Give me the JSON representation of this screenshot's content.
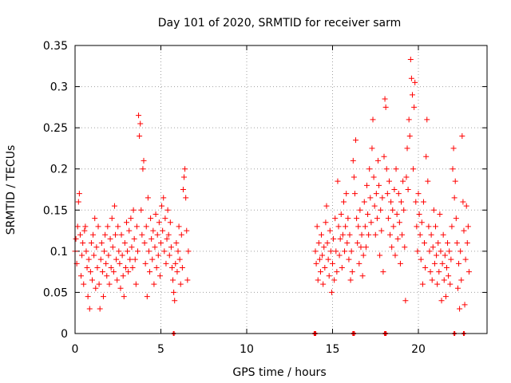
{
  "chart_data": {
    "type": "scatter",
    "title": "Day 101 of 2020, SRMTID for receiver sarm",
    "xlabel": "GPS time / hours",
    "ylabel": "SRMTID / TECUs",
    "xlim": [
      0,
      24
    ],
    "ylim": [
      0,
      0.35
    ],
    "xticks": [
      0,
      5,
      10,
      15,
      20
    ],
    "yticks": [
      0,
      0.05,
      0.1,
      0.15,
      0.2,
      0.25,
      0.3,
      0.35
    ],
    "ytick_labels": [
      "0",
      "0.05",
      "0.1",
      "0.15",
      "0.2",
      "0.25",
      "0.3",
      "0.35"
    ],
    "grid": true,
    "marker": "+",
    "color": "#ff0000",
    "series": [
      {
        "name": "SRMTID",
        "points": [
          [
            0.0,
            0.1
          ],
          [
            0.05,
            0.115
          ],
          [
            0.1,
            0.085
          ],
          [
            0.15,
            0.13
          ],
          [
            0.2,
            0.16
          ],
          [
            0.25,
            0.17
          ],
          [
            0.3,
            0.12
          ],
          [
            0.35,
            0.07
          ],
          [
            0.4,
            0.095
          ],
          [
            0.45,
            0.11
          ],
          [
            0.5,
            0.06
          ],
          [
            0.55,
            0.125
          ],
          [
            0.6,
            0.13
          ],
          [
            0.65,
            0.1
          ],
          [
            0.7,
            0.08
          ],
          [
            0.75,
            0.045
          ],
          [
            0.8,
            0.09
          ],
          [
            0.85,
            0.03
          ],
          [
            0.9,
            0.075
          ],
          [
            0.95,
            0.11
          ],
          [
            1.0,
            0.065
          ],
          [
            1.05,
            0.12
          ],
          [
            1.1,
            0.095
          ],
          [
            1.15,
            0.14
          ],
          [
            1.2,
            0.055
          ],
          [
            1.25,
            0.105
          ],
          [
            1.3,
            0.08
          ],
          [
            1.35,
            0.13
          ],
          [
            1.4,
            0.06
          ],
          [
            1.45,
            0.03
          ],
          [
            1.5,
            0.09
          ],
          [
            1.55,
            0.11
          ],
          [
            1.6,
            0.075
          ],
          [
            1.65,
            0.045
          ],
          [
            1.7,
            0.1
          ],
          [
            1.75,
            0.12
          ],
          [
            1.8,
            0.085
          ],
          [
            1.85,
            0.07
          ],
          [
            1.9,
            0.13
          ],
          [
            1.95,
            0.095
          ],
          [
            2.0,
            0.06
          ],
          [
            2.05,
            0.115
          ],
          [
            2.1,
            0.08
          ],
          [
            2.15,
            0.14
          ],
          [
            2.2,
            0.105
          ],
          [
            2.25,
            0.075
          ],
          [
            2.3,
            0.155
          ],
          [
            2.35,
            0.12
          ],
          [
            2.4,
            0.09
          ],
          [
            2.45,
            0.065
          ],
          [
            2.5,
            0.13
          ],
          [
            2.55,
            0.1
          ],
          [
            2.6,
            0.085
          ],
          [
            2.65,
            0.055
          ],
          [
            2.7,
            0.12
          ],
          [
            2.75,
            0.095
          ],
          [
            2.8,
            0.07
          ],
          [
            2.85,
            0.045
          ],
          [
            2.9,
            0.11
          ],
          [
            2.95,
            0.08
          ],
          [
            3.0,
            0.135
          ],
          [
            3.05,
            0.1
          ],
          [
            3.1,
            0.075
          ],
          [
            3.15,
            0.125
          ],
          [
            3.2,
            0.09
          ],
          [
            3.25,
            0.14
          ],
          [
            3.3,
            0.105
          ],
          [
            3.35,
            0.08
          ],
          [
            3.4,
            0.15
          ],
          [
            3.45,
            0.115
          ],
          [
            3.5,
            0.09
          ],
          [
            3.55,
            0.06
          ],
          [
            3.6,
            0.13
          ],
          [
            3.65,
            0.1
          ],
          [
            3.7,
            0.265
          ],
          [
            3.75,
            0.24
          ],
          [
            3.8,
            0.255
          ],
          [
            3.85,
            0.15
          ],
          [
            3.9,
            0.12
          ],
          [
            3.95,
            0.2
          ],
          [
            4.0,
            0.21
          ],
          [
            4.05,
            0.11
          ],
          [
            4.1,
            0.085
          ],
          [
            4.15,
            0.13
          ],
          [
            4.2,
            0.045
          ],
          [
            4.25,
            0.165
          ],
          [
            4.3,
            0.1
          ],
          [
            4.35,
            0.075
          ],
          [
            4.4,
            0.14
          ],
          [
            4.45,
            0.115
          ],
          [
            4.5,
            0.09
          ],
          [
            4.55,
            0.125
          ],
          [
            4.6,
            0.06
          ],
          [
            4.65,
            0.105
          ],
          [
            4.7,
            0.145
          ],
          [
            4.75,
            0.08
          ],
          [
            4.8,
            0.12
          ],
          [
            4.85,
            0.095
          ],
          [
            4.9,
            0.135
          ],
          [
            4.95,
            0.07
          ],
          [
            5.0,
            0.11
          ],
          [
            5.05,
            0.155
          ],
          [
            5.1,
            0.125
          ],
          [
            5.15,
            0.165
          ],
          [
            5.2,
            0.1
          ],
          [
            5.25,
            0.14
          ],
          [
            5.3,
            0.085
          ],
          [
            5.35,
            0.115
          ],
          [
            5.4,
            0.15
          ],
          [
            5.45,
            0.12
          ],
          [
            5.5,
            0.095
          ],
          [
            5.55,
            0.135
          ],
          [
            5.6,
            0.105
          ],
          [
            5.65,
            0.08
          ],
          [
            5.7,
            0.065
          ],
          [
            5.75,
            0.05
          ],
          [
            5.8,
            0.04
          ],
          [
            5.85,
            0.085
          ],
          [
            5.9,
            0.11
          ],
          [
            5.95,
            0.075
          ],
          [
            6.0,
            0.1
          ],
          [
            6.05,
            0.13
          ],
          [
            6.1,
            0.09
          ],
          [
            6.15,
            0.06
          ],
          [
            6.2,
            0.12
          ],
          [
            6.25,
            0.08
          ],
          [
            6.3,
            0.175
          ],
          [
            6.35,
            0.19
          ],
          [
            6.4,
            0.2
          ],
          [
            6.45,
            0.165
          ],
          [
            6.5,
            0.125
          ],
          [
            6.55,
            0.065
          ],
          [
            6.6,
            0.1
          ],
          [
            14.0,
            0.1
          ],
          [
            14.05,
            0.085
          ],
          [
            14.1,
            0.13
          ],
          [
            14.15,
            0.065
          ],
          [
            14.2,
            0.11
          ],
          [
            14.25,
            0.09
          ],
          [
            14.3,
            0.075
          ],
          [
            14.35,
            0.12
          ],
          [
            14.4,
            0.095
          ],
          [
            14.45,
            0.06
          ],
          [
            14.5,
            0.105
          ],
          [
            14.55,
            0.08
          ],
          [
            14.6,
            0.135
          ],
          [
            14.65,
            0.155
          ],
          [
            14.7,
            0.11
          ],
          [
            14.75,
            0.09
          ],
          [
            14.8,
            0.07
          ],
          [
            14.85,
            0.125
          ],
          [
            14.9,
            0.1
          ],
          [
            14.95,
            0.05
          ],
          [
            15.0,
            0.085
          ],
          [
            15.05,
            0.115
          ],
          [
            15.1,
            0.065
          ],
          [
            15.15,
            0.14
          ],
          [
            15.2,
            0.1
          ],
          [
            15.25,
            0.075
          ],
          [
            15.3,
            0.185
          ],
          [
            15.35,
            0.13
          ],
          [
            15.4,
            0.095
          ],
          [
            15.45,
            0.115
          ],
          [
            15.5,
            0.145
          ],
          [
            15.55,
            0.08
          ],
          [
            15.6,
            0.12
          ],
          [
            15.65,
            0.16
          ],
          [
            15.7,
            0.1
          ],
          [
            15.75,
            0.13
          ],
          [
            15.8,
            0.17
          ],
          [
            15.85,
            0.11
          ],
          [
            15.9,
            0.14
          ],
          [
            15.95,
            0.09
          ],
          [
            16.0,
            0.12
          ],
          [
            16.05,
            0.065
          ],
          [
            16.1,
            0.1
          ],
          [
            16.15,
            0.075
          ],
          [
            16.2,
            0.21
          ],
          [
            16.25,
            0.19
          ],
          [
            16.3,
            0.17
          ],
          [
            16.35,
            0.235
          ],
          [
            16.4,
            0.14
          ],
          [
            16.45,
            0.11
          ],
          [
            16.5,
            0.13
          ],
          [
            16.55,
            0.085
          ],
          [
            16.6,
            0.15
          ],
          [
            16.65,
            0.105
          ],
          [
            16.7,
            0.12
          ],
          [
            16.75,
            0.07
          ],
          [
            16.8,
            0.095
          ],
          [
            16.85,
            0.16
          ],
          [
            16.9,
            0.13
          ],
          [
            16.95,
            0.105
          ],
          [
            17.0,
            0.18
          ],
          [
            17.05,
            0.145
          ],
          [
            17.1,
            0.12
          ],
          [
            17.15,
            0.2
          ],
          [
            17.2,
            0.165
          ],
          [
            17.25,
            0.135
          ],
          [
            17.3,
            0.225
          ],
          [
            17.35,
            0.26
          ],
          [
            17.4,
            0.19
          ],
          [
            17.45,
            0.155
          ],
          [
            17.5,
            0.12
          ],
          [
            17.55,
            0.17
          ],
          [
            17.6,
            0.14
          ],
          [
            17.65,
            0.21
          ],
          [
            17.7,
            0.18
          ],
          [
            17.75,
            0.095
          ],
          [
            17.8,
            0.15
          ],
          [
            17.85,
            0.125
          ],
          [
            17.9,
            0.165
          ],
          [
            17.95,
            0.075
          ],
          [
            18.0,
            0.215
          ],
          [
            18.05,
            0.285
          ],
          [
            18.1,
            0.275
          ],
          [
            18.15,
            0.2
          ],
          [
            18.2,
            0.17
          ],
          [
            18.25,
            0.14
          ],
          [
            18.3,
            0.185
          ],
          [
            18.35,
            0.12
          ],
          [
            18.4,
            0.16
          ],
          [
            18.45,
            0.105
          ],
          [
            18.5,
            0.15
          ],
          [
            18.55,
            0.13
          ],
          [
            18.6,
            0.175
          ],
          [
            18.65,
            0.095
          ],
          [
            18.7,
            0.2
          ],
          [
            18.75,
            0.145
          ],
          [
            18.8,
            0.115
          ],
          [
            18.85,
            0.17
          ],
          [
            18.9,
            0.135
          ],
          [
            18.95,
            0.085
          ],
          [
            19.0,
            0.16
          ],
          [
            19.05,
            0.12
          ],
          [
            19.1,
            0.185
          ],
          [
            19.15,
            0.15
          ],
          [
            19.2,
            0.105
          ],
          [
            19.25,
            0.04
          ],
          [
            19.3,
            0.19
          ],
          [
            19.35,
            0.225
          ],
          [
            19.4,
            0.175
          ],
          [
            19.45,
            0.26
          ],
          [
            19.5,
            0.24
          ],
          [
            19.55,
            0.333
          ],
          [
            19.6,
            0.31
          ],
          [
            19.65,
            0.29
          ],
          [
            19.7,
            0.2
          ],
          [
            19.75,
            0.275
          ],
          [
            19.8,
            0.305
          ],
          [
            19.85,
            0.16
          ],
          [
            19.9,
            0.13
          ],
          [
            19.95,
            0.1
          ],
          [
            20.0,
            0.17
          ],
          [
            20.05,
            0.145
          ],
          [
            20.1,
            0.12
          ],
          [
            20.15,
            0.09
          ],
          [
            20.2,
            0.135
          ],
          [
            20.25,
            0.06
          ],
          [
            20.3,
            0.16
          ],
          [
            20.35,
            0.11
          ],
          [
            20.4,
            0.08
          ],
          [
            20.45,
            0.215
          ],
          [
            20.5,
            0.26
          ],
          [
            20.55,
            0.185
          ],
          [
            20.6,
            0.13
          ],
          [
            20.65,
            0.1
          ],
          [
            20.7,
            0.075
          ],
          [
            20.75,
            0.12
          ],
          [
            20.8,
            0.065
          ],
          [
            20.85,
            0.105
          ],
          [
            20.9,
            0.15
          ],
          [
            20.95,
            0.085
          ],
          [
            21.0,
            0.13
          ],
          [
            21.05,
            0.095
          ],
          [
            21.1,
            0.06
          ],
          [
            21.15,
            0.11
          ],
          [
            21.2,
            0.075
          ],
          [
            21.25,
            0.145
          ],
          [
            21.3,
            0.1
          ],
          [
            21.35,
            0.04
          ],
          [
            21.4,
            0.085
          ],
          [
            21.45,
            0.12
          ],
          [
            21.5,
            0.065
          ],
          [
            21.55,
            0.095
          ],
          [
            21.6,
            0.045
          ],
          [
            21.65,
            0.08
          ],
          [
            21.7,
            0.11
          ],
          [
            21.75,
            0.07
          ],
          [
            21.8,
            0.1
          ],
          [
            21.85,
            0.06
          ],
          [
            21.9,
            0.09
          ],
          [
            21.95,
            0.13
          ],
          [
            22.0,
            0.2
          ],
          [
            22.05,
            0.225
          ],
          [
            22.1,
            0.165
          ],
          [
            22.15,
            0.185
          ],
          [
            22.2,
            0.14
          ],
          [
            22.25,
            0.11
          ],
          [
            22.3,
            0.055
          ],
          [
            22.35,
            0.085
          ],
          [
            22.4,
            0.03
          ],
          [
            22.45,
            0.1
          ],
          [
            22.5,
            0.065
          ],
          [
            22.55,
            0.24
          ],
          [
            22.6,
            0.16
          ],
          [
            22.65,
            0.125
          ],
          [
            22.7,
            0.035
          ],
          [
            22.75,
            0.09
          ],
          [
            22.8,
            0.155
          ],
          [
            22.85,
            0.11
          ],
          [
            22.9,
            0.13
          ],
          [
            22.95,
            0.075
          ]
        ]
      }
    ],
    "zero_markers": [
      5.75,
      13.95,
      14.0,
      16.2,
      16.25,
      18.05,
      18.1,
      22.1,
      22.65
    ]
  }
}
